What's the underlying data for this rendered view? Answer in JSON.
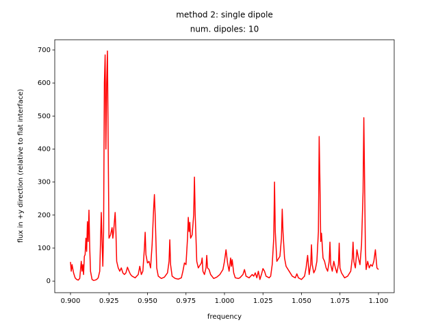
{
  "chart_data": {
    "type": "line",
    "title": "method 2: single dipole",
    "subtitle": "num. dipoles: 10",
    "x_label": "frequency",
    "y_label": "flux in +y direction (relative to flat interface)",
    "xlim": [
      0.88978,
      1.11022
    ],
    "ylim": [
      -35,
      731
    ],
    "xticks": [
      {
        "value": 0.9,
        "label": "0.900"
      },
      {
        "value": 0.925,
        "label": "0.925"
      },
      {
        "value": 0.95,
        "label": "0.950"
      },
      {
        "value": 0.975,
        "label": "0.975"
      },
      {
        "value": 1.0,
        "label": "1.000"
      },
      {
        "value": 1.025,
        "label": "1.025"
      },
      {
        "value": 1.05,
        "label": "1.050"
      },
      {
        "value": 1.075,
        "label": "1.075"
      },
      {
        "value": 1.1,
        "label": "1.100"
      }
    ],
    "yticks": [
      0,
      100,
      200,
      300,
      400,
      500,
      600,
      700
    ],
    "grid": false,
    "series": [
      {
        "color": "#ff0000",
        "x": [
          0.9,
          0.9005,
          0.901,
          0.902,
          0.903,
          0.904,
          0.905,
          0.906,
          0.907,
          0.9075,
          0.908,
          0.9085,
          0.909,
          0.9095,
          0.91,
          0.9105,
          0.911,
          0.9115,
          0.912,
          0.9125,
          0.913,
          0.914,
          0.915,
          0.916,
          0.917,
          0.918,
          0.919,
          0.92,
          0.9205,
          0.921,
          0.9215,
          0.922,
          0.9225,
          0.923,
          0.9235,
          0.924,
          0.9245,
          0.925,
          0.926,
          0.927,
          0.9275,
          0.928,
          0.929,
          0.9295,
          0.93,
          0.931,
          0.932,
          0.933,
          0.934,
          0.935,
          0.936,
          0.937,
          0.938,
          0.939,
          0.94,
          0.942,
          0.944,
          0.945,
          0.946,
          0.947,
          0.948,
          0.9485,
          0.949,
          0.95,
          0.951,
          0.952,
          0.953,
          0.954,
          0.9545,
          0.955,
          0.956,
          0.957,
          0.959,
          0.961,
          0.963,
          0.964,
          0.9645,
          0.965,
          0.966,
          0.968,
          0.97,
          0.972,
          0.973,
          0.974,
          0.975,
          0.976,
          0.9765,
          0.977,
          0.9775,
          0.978,
          0.979,
          0.98,
          0.9805,
          0.981,
          0.982,
          0.983,
          0.985,
          0.9855,
          0.986,
          0.987,
          0.988,
          0.9885,
          0.989,
          0.99,
          0.991,
          0.993,
          0.995,
          0.997,
          0.999,
          1.0,
          1.001,
          1.002,
          1.003,
          1.004,
          1.0045,
          1.005,
          1.006,
          1.007,
          1.009,
          1.01,
          1.012,
          1.013,
          1.014,
          1.016,
          1.018,
          1.019,
          1.02,
          1.021,
          1.022,
          1.023,
          1.024,
          1.025,
          1.026,
          1.027,
          1.029,
          1.03,
          1.031,
          1.032,
          1.0325,
          1.033,
          1.034,
          1.036,
          1.037,
          1.0375,
          1.038,
          1.039,
          1.04,
          1.042,
          1.044,
          1.046,
          1.047,
          1.048,
          1.05,
          1.052,
          1.053,
          1.054,
          1.055,
          1.056,
          1.0565,
          1.057,
          1.058,
          1.059,
          1.06,
          1.061,
          1.0615,
          1.062,
          1.0625,
          1.063,
          1.064,
          1.065,
          1.066,
          1.067,
          1.068,
          1.0685,
          1.069,
          1.07,
          1.071,
          1.072,
          1.073,
          1.074,
          1.0745,
          1.075,
          1.076,
          1.078,
          1.08,
          1.082,
          1.083,
          1.0835,
          1.084,
          1.085,
          1.086,
          1.087,
          1.088,
          1.089,
          1.09,
          1.0905,
          1.091,
          1.0915,
          1.092,
          1.093,
          1.094,
          1.095,
          1.096,
          1.097,
          1.098,
          1.099,
          1.1
        ],
        "values": [
          58,
          30,
          50,
          25,
          10,
          5,
          3,
          8,
          60,
          30,
          50,
          20,
          75,
          80,
          130,
          90,
          180,
          120,
          215,
          100,
          30,
          5,
          2,
          3,
          5,
          10,
          30,
          208,
          120,
          45,
          150,
          600,
          685,
          400,
          600,
          697,
          400,
          130,
          140,
          162,
          130,
          150,
          208,
          150,
          60,
          40,
          30,
          40,
          25,
          20,
          25,
          42,
          30,
          20,
          15,
          10,
          20,
          45,
          20,
          30,
          100,
          148,
          80,
          55,
          60,
          40,
          110,
          220,
          262,
          200,
          40,
          15,
          8,
          12,
          25,
          60,
          125,
          50,
          15,
          8,
          6,
          10,
          30,
          55,
          50,
          130,
          193,
          150,
          178,
          130,
          140,
          200,
          315,
          200,
          60,
          40,
          55,
          70,
          30,
          20,
          40,
          78,
          40,
          35,
          20,
          8,
          12,
          20,
          35,
          60,
          95,
          55,
          30,
          70,
          45,
          65,
          25,
          10,
          8,
          10,
          20,
          35,
          15,
          10,
          20,
          15,
          25,
          10,
          30,
          5,
          20,
          38,
          30,
          15,
          10,
          15,
          50,
          130,
          300,
          150,
          60,
          75,
          130,
          218,
          150,
          70,
          45,
          30,
          15,
          10,
          22,
          10,
          5,
          15,
          40,
          78,
          20,
          50,
          110,
          50,
          25,
          35,
          60,
          150,
          438,
          300,
          120,
          145,
          70,
          60,
          40,
          30,
          60,
          118,
          50,
          30,
          60,
          40,
          25,
          50,
          115,
          40,
          25,
          10,
          15,
          30,
          70,
          118,
          60,
          40,
          95,
          70,
          50,
          110,
          270,
          495,
          300,
          100,
          35,
          60,
          40,
          50,
          45,
          60,
          95,
          40,
          35
        ]
      }
    ]
  }
}
